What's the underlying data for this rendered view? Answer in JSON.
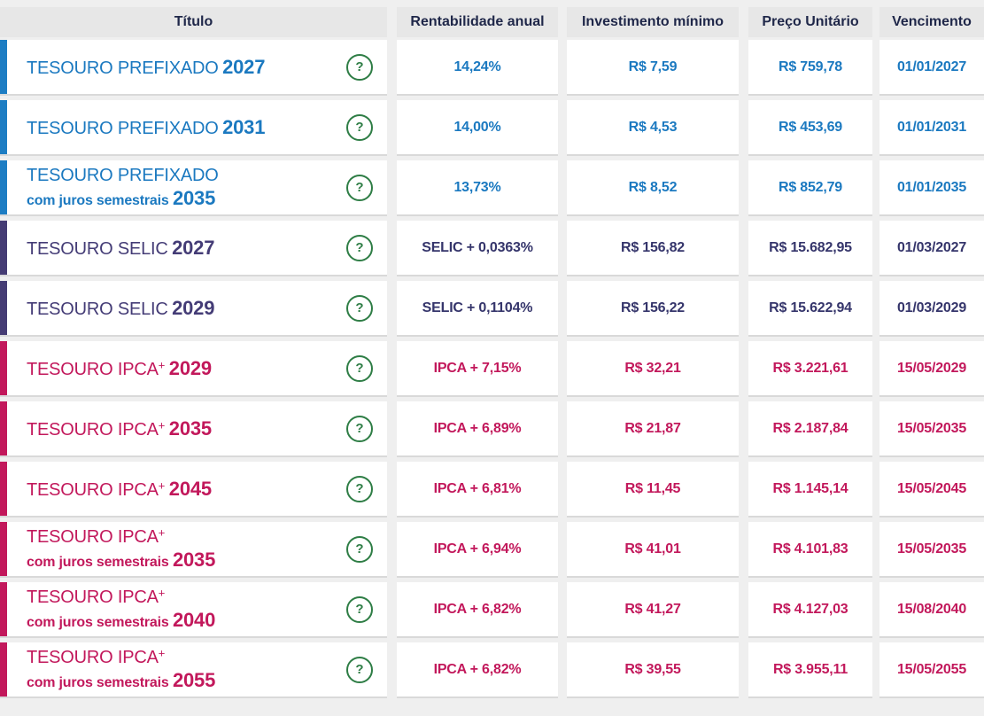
{
  "columns": {
    "titulo": "Título",
    "rentabilidade": "Rentabilidade anual",
    "investimento": "Investimento mínimo",
    "preco": "Preço Unitário",
    "vencimento": "Vencimento"
  },
  "help": {
    "glyph": "?"
  },
  "colors": {
    "prefixado": "#1d7dc3",
    "selic_title": "#443c76",
    "selic_value": "#35356b",
    "ipca": "#c2185b",
    "help_green": "#2e7d45",
    "header_text": "#1f2749",
    "header_bg": "#e7e7e7",
    "row_separator": "#d9d9d9",
    "page_bg": "#efefef"
  },
  "rows": [
    {
      "family": "prefixado",
      "title": "TESOURO PREFIXADO",
      "plus": "",
      "subtitle": "",
      "year": "2027",
      "rentabilidade": "14,24%",
      "investimento": "R$ 7,59",
      "preco": "R$ 759,78",
      "vencimento": "01/01/2027"
    },
    {
      "family": "prefixado",
      "title": "TESOURO PREFIXADO",
      "plus": "",
      "subtitle": "",
      "year": "2031",
      "rentabilidade": "14,00%",
      "investimento": "R$ 4,53",
      "preco": "R$ 453,69",
      "vencimento": "01/01/2031"
    },
    {
      "family": "prefixado",
      "title": "TESOURO PREFIXADO",
      "plus": "",
      "subtitle": "com juros semestrais",
      "year": "2035",
      "rentabilidade": "13,73%",
      "investimento": "R$ 8,52",
      "preco": "R$ 852,79",
      "vencimento": "01/01/2035"
    },
    {
      "family": "selic",
      "title": "TESOURO SELIC",
      "plus": "",
      "subtitle": "",
      "year": "2027",
      "rentabilidade": "SELIC + 0,0363%",
      "investimento": "R$ 156,82",
      "preco": "R$ 15.682,95",
      "vencimento": "01/03/2027"
    },
    {
      "family": "selic",
      "title": "TESOURO SELIC",
      "plus": "",
      "subtitle": "",
      "year": "2029",
      "rentabilidade": "SELIC + 0,1104%",
      "investimento": "R$ 156,22",
      "preco": "R$ 15.622,94",
      "vencimento": "01/03/2029"
    },
    {
      "family": "ipca",
      "title": "TESOURO IPCA",
      "plus": "+",
      "subtitle": "",
      "year": "2029",
      "rentabilidade": "IPCA + 7,15%",
      "investimento": "R$ 32,21",
      "preco": "R$ 3.221,61",
      "vencimento": "15/05/2029"
    },
    {
      "family": "ipca",
      "title": "TESOURO IPCA",
      "plus": "+",
      "subtitle": "",
      "year": "2035",
      "rentabilidade": "IPCA + 6,89%",
      "investimento": "R$ 21,87",
      "preco": "R$ 2.187,84",
      "vencimento": "15/05/2035"
    },
    {
      "family": "ipca",
      "title": "TESOURO IPCA",
      "plus": "+",
      "subtitle": "",
      "year": "2045",
      "rentabilidade": "IPCA + 6,81%",
      "investimento": "R$ 11,45",
      "preco": "R$ 1.145,14",
      "vencimento": "15/05/2045"
    },
    {
      "family": "ipca",
      "title": "TESOURO IPCA",
      "plus": "+",
      "subtitle": "com juros semestrais",
      "year": "2035",
      "rentabilidade": "IPCA + 6,94%",
      "investimento": "R$ 41,01",
      "preco": "R$ 4.101,83",
      "vencimento": "15/05/2035"
    },
    {
      "family": "ipca",
      "title": "TESOURO IPCA",
      "plus": "+",
      "subtitle": "com juros semestrais",
      "year": "2040",
      "rentabilidade": "IPCA + 6,82%",
      "investimento": "R$ 41,27",
      "preco": "R$ 4.127,03",
      "vencimento": "15/08/2040"
    },
    {
      "family": "ipca",
      "title": "TESOURO IPCA",
      "plus": "+",
      "subtitle": "com juros semestrais",
      "year": "2055",
      "rentabilidade": "IPCA + 6,82%",
      "investimento": "R$ 39,55",
      "preco": "R$ 3.955,11",
      "vencimento": "15/05/2055"
    }
  ]
}
